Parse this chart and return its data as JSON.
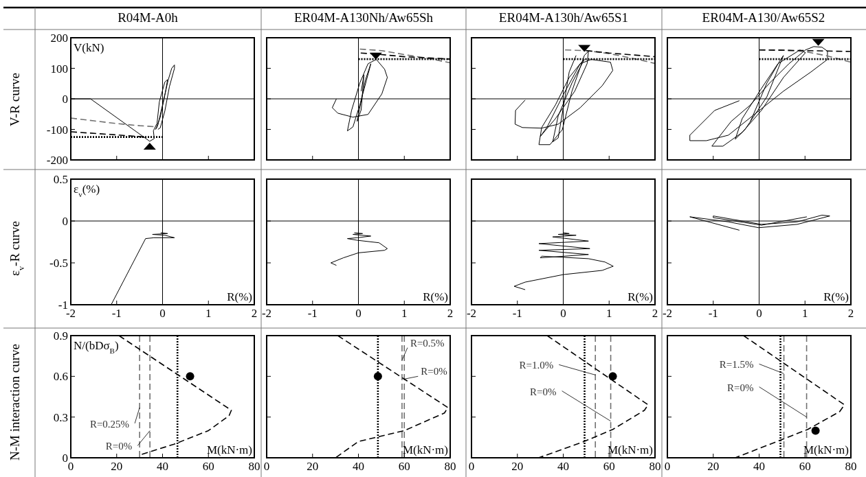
{
  "chart_data": [
    {
      "type": "line",
      "title": "R04M-A0h",
      "ylabel": "V(kN)",
      "annotations": [
        "V-R curve"
      ],
      "xlim": [
        -2,
        2
      ],
      "ylim": [
        -200,
        200
      ],
      "xticks": [
        -2,
        -1,
        0,
        1,
        2
      ],
      "yticks": [
        -200,
        -100,
        0,
        100,
        200
      ],
      "tick_labels": "y",
      "grid": false,
      "ref_lines": [
        {
          "axis": "x",
          "value": 0,
          "color": "#000000"
        },
        {
          "axis": "y",
          "value": 0,
          "color": "#000000"
        }
      ],
      "series": [
        {
          "color": "#000000",
          "line_style": "solid",
          "x": [
            -2,
            -1.57,
            -0.28,
            -0.18,
            -0.2,
            -0.12,
            -0.07,
            0.05,
            0.11,
            0.06,
            -0.05,
            -0.15,
            -0.1,
            0.0,
            0.12,
            0.2,
            0.26,
            0.26,
            0.15,
            0.05,
            -0.05,
            -0.1
          ],
          "values": [
            0,
            0,
            -139,
            -130,
            -105,
            -80,
            -10,
            55,
            63,
            20,
            -60,
            -100,
            -85,
            -20,
            60,
            100,
            111,
            100,
            40,
            -40,
            -95,
            -100
          ]
        },
        {
          "color": "#707070",
          "line_style": "dashed",
          "x": [
            -2,
            -1.5,
            -1,
            -0.5,
            -0.1
          ],
          "values": [
            -63,
            -72,
            -81,
            -88,
            -92
          ]
        },
        {
          "color": "#000000",
          "line_style": "dashed",
          "x": [
            -2,
            -1,
            -0.4
          ],
          "values": [
            -108,
            -118,
            -125
          ]
        },
        {
          "color": "#000000",
          "line_style": "dotted",
          "x": [
            -2,
            0
          ],
          "values": [
            -125,
            -125
          ]
        },
        {
          "type": "scatter",
          "marker": "triangle",
          "color": "#000000",
          "x": [
            -0.28
          ],
          "values": [
            -155
          ]
        }
      ]
    },
    {
      "type": "line",
      "title": "ER04M-A130Nh/Aw65Sh",
      "xlim": [
        -2,
        2
      ],
      "ylim": [
        -200,
        200
      ],
      "xticks": [
        -2,
        -1,
        0,
        1,
        2
      ],
      "yticks": [
        -200,
        -100,
        0,
        100,
        200
      ],
      "tick_labels": false,
      "grid": false,
      "ref_lines": [
        {
          "axis": "x",
          "value": 0,
          "color": "#000000"
        },
        {
          "axis": "y",
          "value": 0,
          "color": "#000000"
        }
      ],
      "series": [
        {
          "color": "#000000",
          "line_style": "solid",
          "x": [
            -0.48,
            -0.57,
            -0.45,
            -0.12,
            0.21,
            0.51,
            0.63,
            0.57,
            0.39,
            0.21,
            0.03,
            -0.15,
            -0.24,
            -0.12,
            0.03,
            0.24,
            0.27,
            0.15,
            -0.03,
            0.06,
            0.12,
            0.06
          ],
          "values": [
            0,
            -29,
            -47,
            -60,
            -51,
            16,
            70,
            97,
            129,
            115,
            52,
            -38,
            -105,
            -92,
            -20,
            97,
            115,
            61,
            -74,
            -36,
            79,
            25
          ]
        },
        {
          "color": "#707070",
          "line_style": "dashed",
          "x": [
            0.03,
            0.5,
            1,
            1.5,
            2
          ],
          "values": [
            163,
            158,
            145,
            133,
            118
          ]
        },
        {
          "color": "#000000",
          "line_style": "dashed",
          "x": [
            0.05,
            0.5,
            1,
            2
          ],
          "values": [
            150,
            145,
            138,
            130
          ]
        },
        {
          "color": "#000000",
          "line_style": "dotted",
          "x": [
            0,
            2
          ],
          "values": [
            130,
            130
          ]
        },
        {
          "type": "scatter",
          "marker": "triangle",
          "color": "#000000",
          "x": [
            0.38
          ],
          "values": [
            140
          ]
        }
      ]
    },
    {
      "type": "line",
      "title": "ER04M-A130h/Aw65S1",
      "xlim": [
        -2,
        2
      ],
      "ylim": [
        -200,
        200
      ],
      "xticks": [
        -2,
        -1,
        0,
        1,
        2
      ],
      "yticks": [
        -200,
        -100,
        0,
        100,
        200
      ],
      "tick_labels": false,
      "grid": false,
      "ref_lines": [
        {
          "axis": "x",
          "value": 0,
          "color": "#000000"
        },
        {
          "axis": "y",
          "value": 0,
          "color": "#000000"
        }
      ],
      "series": [
        {
          "color": "#000000",
          "line_style": "solid",
          "x": [
            -0.83,
            -1.04,
            -1.05,
            -0.89,
            -0.47,
            -0.11,
            0.37,
            0.85,
            1.08,
            1.03,
            0.61,
            0.37,
            0.13,
            -0.17,
            -0.47,
            -0.53,
            -0.29,
            -0.02,
            0.19,
            0.46,
            0.55,
            0.52,
            0.25,
            -0.17,
            -0.5,
            -0.35,
            0.01,
            0.37,
            0.46,
            0.19,
            -0.11,
            -0.23,
            -0.11,
            0.13,
            0.28
          ],
          "values": [
            -4,
            -38,
            -83,
            -94,
            -96,
            -83,
            -29,
            43,
            93,
            120,
            129,
            115,
            70,
            -20,
            -94,
            -150,
            -150,
            -101,
            25,
            142,
            156,
            115,
            25,
            -65,
            -123,
            -92,
            16,
            115,
            129,
            52,
            -56,
            -141,
            -128,
            88,
            142
          ]
        },
        {
          "color": "#707070",
          "line_style": "dashed",
          "x": [
            0.04,
            0.5,
            1,
            1.5,
            2
          ],
          "values": [
            160,
            158,
            148,
            133,
            116
          ]
        },
        {
          "color": "#000000",
          "line_style": "dashed",
          "x": [
            0.5,
            1,
            2
          ],
          "values": [
            158,
            150,
            138
          ]
        },
        {
          "color": "#000000",
          "line_style": "dotted",
          "x": [
            0,
            2
          ],
          "values": [
            130,
            130
          ]
        },
        {
          "type": "scatter",
          "marker": "triangle",
          "color": "#000000",
          "x": [
            0.46
          ],
          "values": [
            165
          ]
        }
      ]
    },
    {
      "type": "line",
      "title": "ER04M-A130/Aw65S2",
      "xlim": [
        -2,
        2
      ],
      "ylim": [
        -200,
        200
      ],
      "xticks": [
        -2,
        -1,
        0,
        1,
        2
      ],
      "yticks": [
        -200,
        -100,
        0,
        100,
        200
      ],
      "tick_labels": false,
      "grid": false,
      "ref_lines": [
        {
          "axis": "x",
          "value": 0,
          "color": "#000000"
        },
        {
          "axis": "y",
          "value": 0,
          "color": "#000000"
        }
      ],
      "series": [
        {
          "color": "#000000",
          "line_style": "solid",
          "x": [
            -0.43,
            -0.97,
            -1.51,
            -1.51,
            -1.15,
            -0.67,
            -0.07,
            0.53,
            1.13,
            1.49,
            1.49,
            1.37,
            1.19,
            1.01,
            0.65,
            0.23,
            -0.19,
            -0.61,
            -1.03,
            -0.79,
            -0.37,
            0.05,
            0.53,
            1.01,
            0.89,
            0.41,
            0.05,
            -0.37,
            -0.52,
            -0.31,
            0.17,
            0.53,
            0.47,
            0.17,
            -0.19
          ],
          "values": [
            -6,
            -38,
            -119,
            -137,
            -137,
            -119,
            -47,
            25,
            88,
            129,
            156,
            169,
            171,
            160,
            115,
            52,
            -20,
            -74,
            -155,
            -155,
            -110,
            -38,
            70,
            151,
            160,
            115,
            34,
            -65,
            -132,
            -101,
            7,
            142,
            129,
            52,
            -74
          ]
        },
        {
          "color": "#707070",
          "line_style": "dashed",
          "x": [
            0,
            0.5,
            1,
            1.5,
            2
          ],
          "values": [
            160,
            160,
            155,
            140,
            120
          ]
        },
        {
          "color": "#000000",
          "line_style": "dashed",
          "x": [
            0,
            1,
            2
          ],
          "values": [
            160,
            158,
            155
          ]
        },
        {
          "color": "#000000",
          "line_style": "dotted",
          "x": [
            0,
            2
          ],
          "values": [
            130,
            130
          ]
        },
        {
          "type": "scatter",
          "marker": "triangle",
          "color": "#000000",
          "x": [
            1.29
          ],
          "values": [
            185
          ]
        }
      ]
    },
    {
      "type": "line",
      "ylabel": "ε$_{v}$(%)",
      "xlabel": "R(%)",
      "annotations": [
        "ε$_{v}$-R curve"
      ],
      "xlim": [
        -2,
        2
      ],
      "ylim": [
        -1,
        0.5
      ],
      "xticks": [
        -2,
        -1,
        0,
        1,
        2
      ],
      "yticks": [
        -1,
        -0.5,
        0,
        0.5
      ],
      "grid": false,
      "ref_lines": [
        {
          "axis": "x",
          "value": 0,
          "color": "#000000"
        },
        {
          "axis": "y",
          "value": 0,
          "color": "#000000"
        }
      ],
      "series": [
        {
          "color": "#000000",
          "line_style": "solid",
          "x": [
            -1.12,
            -0.37,
            -0.19,
            0.26,
            0.05,
            -0.22,
            0.11,
            -0.04
          ],
          "values": [
            -1.0,
            -0.21,
            -0.2,
            -0.2,
            -0.17,
            -0.16,
            -0.15,
            -0.14
          ]
        }
      ]
    },
    {
      "type": "line",
      "xlabel": "R(%)",
      "xlim": [
        -2,
        2
      ],
      "ylim": [
        -1,
        0.5
      ],
      "xticks": [
        -2,
        -1,
        0,
        1,
        2
      ],
      "yticks": [
        -1,
        -0.5,
        0,
        0.5
      ],
      "tick_labels": "x",
      "grid": false,
      "ref_lines": [
        {
          "axis": "x",
          "value": 0,
          "color": "#000000"
        },
        {
          "axis": "y",
          "value": 0,
          "color": "#000000"
        }
      ],
      "series": [
        {
          "color": "#000000",
          "line_style": "solid",
          "x": [
            -0.48,
            -0.6,
            -0.33,
            0,
            0.57,
            0.63,
            0.45,
            -0.03,
            -0.24,
            -0.03,
            0.27,
            -0.12,
            0.09,
            -0.09
          ],
          "values": [
            -0.53,
            -0.5,
            -0.44,
            -0.38,
            -0.35,
            -0.33,
            -0.26,
            -0.23,
            -0.21,
            -0.2,
            -0.18,
            -0.16,
            -0.15,
            -0.14
          ]
        }
      ]
    },
    {
      "type": "line",
      "xlabel": "R(%)",
      "xlim": [
        -2,
        2
      ],
      "ylim": [
        -1,
        0.5
      ],
      "xticks": [
        -2,
        -1,
        0,
        1,
        2
      ],
      "yticks": [
        -1,
        -0.5,
        0,
        0.5
      ],
      "tick_labels": "x",
      "grid": false,
      "ref_lines": [
        {
          "axis": "x",
          "value": 0,
          "color": "#000000"
        },
        {
          "axis": "y",
          "value": 0,
          "color": "#000000"
        }
      ],
      "series": [
        {
          "color": "#000000",
          "line_style": "solid",
          "x": [
            -0.83,
            -1.07,
            -0.83,
            0,
            0.85,
            1.09,
            0.91,
            0.55,
            -0.47,
            -0.5,
            0.55,
            -0.53,
            0.58,
            -0.53,
            0.55,
            -0.23,
            0.28,
            -0.11,
            0.13,
            0
          ],
          "values": [
            -0.82,
            -0.78,
            -0.73,
            -0.64,
            -0.59,
            -0.54,
            -0.49,
            -0.45,
            -0.42,
            -0.44,
            -0.4,
            -0.35,
            -0.33,
            -0.27,
            -0.24,
            -0.19,
            -0.17,
            -0.16,
            -0.15,
            -0.14
          ]
        }
      ]
    },
    {
      "type": "line",
      "xlabel": "R(%)",
      "xlim": [
        -2,
        2
      ],
      "ylim": [
        -1,
        0.5
      ],
      "xticks": [
        -2,
        -1,
        0,
        1,
        2
      ],
      "yticks": [
        -1,
        -0.5,
        0,
        0.5
      ],
      "tick_labels": "x",
      "grid": false,
      "ref_lines": [
        {
          "axis": "x",
          "value": 0,
          "color": "#000000"
        },
        {
          "axis": "y",
          "value": 0,
          "color": "#000000"
        }
      ],
      "series": [
        {
          "color": "#000000",
          "line_style": "solid",
          "x": [
            -0.43,
            -1.51,
            -0.67,
            -0.01,
            0.83,
            1.54,
            1.37,
            0.83,
            0.05,
            -1.0,
            -1.0,
            0.05,
            1.04
          ],
          "values": [
            -0.11,
            0.05,
            -0.01,
            -0.08,
            -0.04,
            0.06,
            0.07,
            -0.01,
            -0.04,
            0.06,
            0.04,
            -0.05,
            0.05
          ]
        }
      ]
    },
    {
      "type": "line",
      "ylabel": "N/(bDσ$_{B}$)",
      "xlabel": "M(kN·m)",
      "annotations": [
        "N-M interaction curve",
        {
          "text": "R=0.25%",
          "x": 30,
          "y": 0.37
        },
        {
          "text": "R=0%",
          "x": 34.5,
          "y": 0.2
        }
      ],
      "xlim": [
        0,
        80
      ],
      "ylim": [
        0,
        0.9
      ],
      "xticks": [
        0,
        20,
        40,
        60,
        80
      ],
      "yticks": [
        0,
        0.3,
        0.6,
        0.9
      ],
      "grid": false,
      "ref_lines": [
        {
          "axis": "x",
          "value": 30,
          "color": "#707070",
          "line_style": "dashed"
        },
        {
          "axis": "x",
          "value": 34.5,
          "color": "#707070",
          "line_style": "dashed"
        },
        {
          "axis": "x",
          "value": 46.5,
          "color": "#000000",
          "line_style": "dotted"
        }
      ],
      "series": [
        {
          "color": "#000000",
          "line_style": "dashed",
          "x": [
            21,
            70,
            69,
            60,
            45,
            30
          ],
          "values": [
            0.9,
            0.35,
            0.31,
            0.2,
            0.1,
            0.02
          ]
        },
        {
          "type": "scatter",
          "marker": "circle",
          "color": "#000000",
          "x": [
            52
          ],
          "values": [
            0.6
          ]
        }
      ]
    },
    {
      "type": "line",
      "xlabel": "M(kN·m)",
      "annotations": [
        {
          "text": "R=0.5%",
          "x": 59,
          "y": 0.72
        },
        {
          "text": "R=0%",
          "x": 60,
          "y": 0.58
        }
      ],
      "xlim": [
        0,
        80
      ],
      "ylim": [
        0,
        0.9
      ],
      "xticks": [
        0,
        20,
        40,
        60,
        80
      ],
      "yticks": [
        0,
        0.3,
        0.6,
        0.9
      ],
      "tick_labels": "x",
      "grid": false,
      "ref_lines": [
        {
          "axis": "x",
          "value": 59,
          "color": "#707070",
          "line_style": "dashed"
        },
        {
          "axis": "x",
          "value": 60,
          "color": "#707070",
          "line_style": "dashed"
        },
        {
          "axis": "x",
          "value": 48.5,
          "color": "#000000",
          "line_style": "dotted"
        }
      ],
      "series": [
        {
          "color": "#000000",
          "line_style": "dashed",
          "x": [
            31,
            79,
            77.5,
            60,
            40,
            30
          ],
          "values": [
            0.9,
            0.37,
            0.33,
            0.2,
            0.12,
            0.0
          ]
        },
        {
          "type": "scatter",
          "marker": "circle",
          "color": "#000000",
          "x": [
            48.5
          ],
          "values": [
            0.6
          ]
        }
      ]
    },
    {
      "type": "line",
      "xlabel": "M(kN·m)",
      "annotations": [
        {
          "text": "R=1.0%",
          "x": 54,
          "y": 0.61
        },
        {
          "text": "R=0%",
          "x": 60.7,
          "y": 0.27
        }
      ],
      "xlim": [
        0,
        80
      ],
      "ylim": [
        0,
        0.9
      ],
      "xticks": [
        0,
        20,
        40,
        60,
        80
      ],
      "yticks": [
        0,
        0.3,
        0.6,
        0.9
      ],
      "tick_labels": "x",
      "grid": false,
      "ref_lines": [
        {
          "axis": "x",
          "value": 54,
          "color": "#707070",
          "line_style": "dashed"
        },
        {
          "axis": "x",
          "value": 60.7,
          "color": "#707070",
          "line_style": "dashed"
        },
        {
          "axis": "x",
          "value": 49.3,
          "color": "#000000",
          "line_style": "dotted"
        }
      ],
      "series": [
        {
          "color": "#000000",
          "line_style": "dashed",
          "x": [
            33,
            77,
            75.4,
            61.7,
            49.1,
            29.3
          ],
          "values": [
            0.9,
            0.39,
            0.35,
            0.21,
            0.12,
            0.0
          ]
        },
        {
          "type": "scatter",
          "marker": "circle",
          "color": "#000000",
          "x": [
            61.6
          ],
          "values": [
            0.6
          ]
        }
      ]
    },
    {
      "type": "line",
      "xlabel": "M(kN·m)",
      "annotations": [
        {
          "text": "R=1.5%",
          "x": 50.8,
          "y": 0.62
        },
        {
          "text": "R=0%",
          "x": 60.7,
          "y": 0.3
        }
      ],
      "xlim": [
        0,
        80
      ],
      "ylim": [
        0,
        0.9
      ],
      "xticks": [
        0,
        20,
        40,
        60,
        80
      ],
      "yticks": [
        0,
        0.3,
        0.6,
        0.9
      ],
      "tick_labels": "x",
      "grid": false,
      "ref_lines": [
        {
          "axis": "x",
          "value": 50.8,
          "color": "#707070",
          "line_style": "dashed"
        },
        {
          "axis": "x",
          "value": 60.7,
          "color": "#707070",
          "line_style": "dashed"
        },
        {
          "axis": "x",
          "value": 49.3,
          "color": "#000000",
          "line_style": "dotted"
        }
      ],
      "series": [
        {
          "color": "#000000",
          "line_style": "dashed",
          "x": [
            33.2,
            77.2,
            75.1,
            61.3,
            49.3,
            29.6
          ],
          "values": [
            0.9,
            0.39,
            0.34,
            0.21,
            0.13,
            0.0
          ]
        },
        {
          "type": "scatter",
          "marker": "circle",
          "color": "#000000",
          "x": [
            64.6
          ],
          "values": [
            0.2
          ]
        }
      ]
    }
  ]
}
